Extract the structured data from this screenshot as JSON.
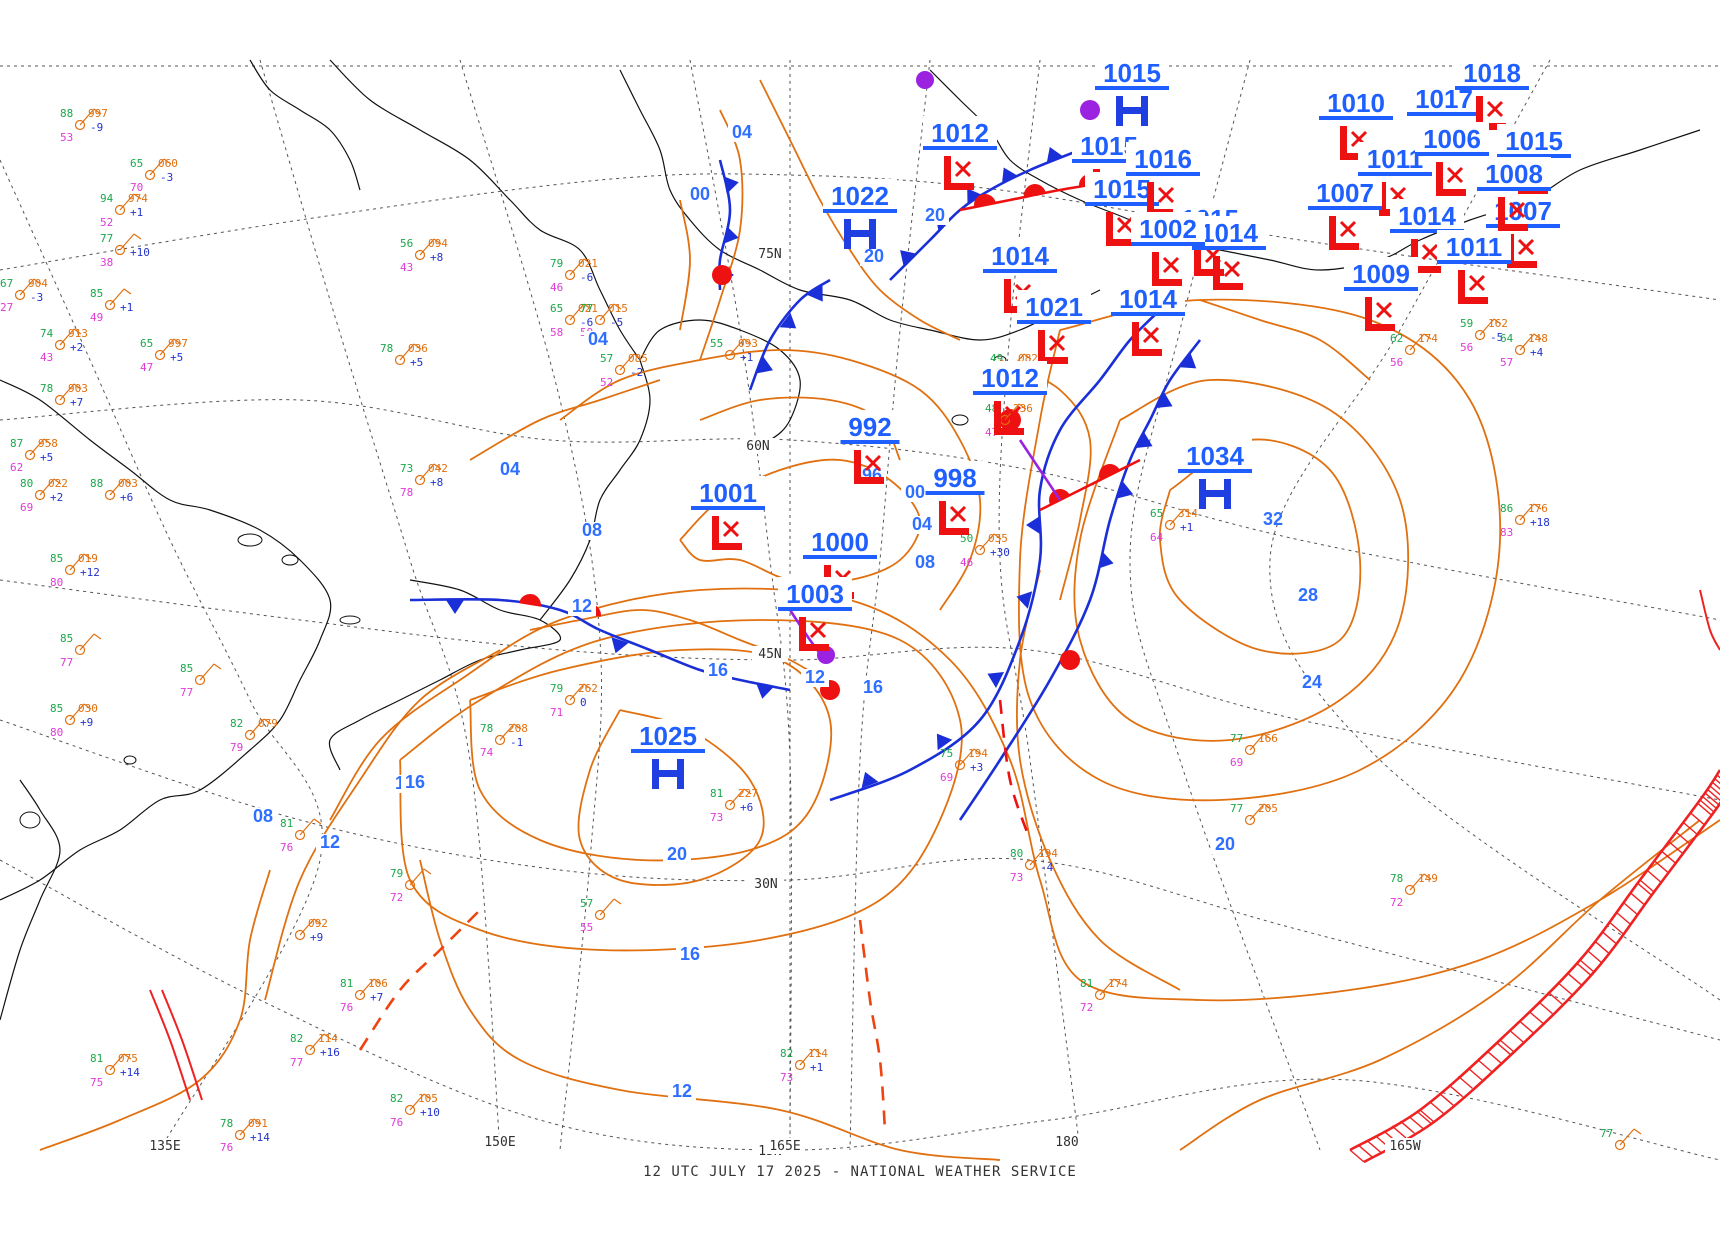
{
  "footer_text": "12 UTC JULY 17 2025 - NATIONAL WEATHER SERVICE",
  "colors": {
    "isobar": "#e07010",
    "isobar_label": "#2f6fff",
    "center_label": "#1f5fff",
    "high_symbol": "#1f3fe0",
    "low_symbol": "#ee1111",
    "cold_front": "#1a2fd8",
    "warm_front": "#ee1111",
    "occluded_front": "#9a22e0",
    "trough": "#ee4411",
    "coastline": "#111111",
    "grid": "#555555",
    "obs_temp": "#1aa84a",
    "obs_dew": "#e03ad8",
    "obs_pressure": "#e07010",
    "obs_tendency": "#2233cc"
  },
  "grid_labels": {
    "lat": [
      "75N",
      "60N",
      "45N",
      "30N",
      "15N"
    ],
    "lon": [
      "135E",
      "150E",
      "165E",
      "180",
      "165W"
    ]
  },
  "pressure_centers": [
    {
      "type": "H",
      "value": "1022"
    },
    {
      "type": "H",
      "value": "1034",
      "extra": "32"
    },
    {
      "type": "H",
      "value": "1025"
    },
    {
      "type": "H",
      "value": "1015"
    },
    {
      "type": "L",
      "value": "1012"
    },
    {
      "type": "L",
      "value": "992"
    },
    {
      "type": "L",
      "value": "998"
    },
    {
      "type": "L",
      "value": "1001"
    },
    {
      "type": "L",
      "value": "1000"
    },
    {
      "type": "L",
      "value": "1003"
    },
    {
      "type": "L",
      "value": "1014"
    },
    {
      "type": "L",
      "value": "1021"
    },
    {
      "type": "L",
      "value": "1014"
    },
    {
      "type": "L",
      "value": "1012"
    },
    {
      "type": "L",
      "value": "1015"
    },
    {
      "type": "L",
      "value": "1015"
    },
    {
      "type": "L",
      "value": "1016"
    },
    {
      "type": "L",
      "value": "1015"
    },
    {
      "type": "L",
      "value": "1014"
    },
    {
      "type": "L",
      "value": "1010"
    },
    {
      "type": "L",
      "value": "1017"
    },
    {
      "type": "L",
      "value": "1018"
    },
    {
      "type": "L",
      "value": "1011"
    },
    {
      "type": "L",
      "value": "1006"
    },
    {
      "type": "L",
      "value": "1015"
    },
    {
      "type": "L",
      "value": "1007"
    },
    {
      "type": "L",
      "value": "1014"
    },
    {
      "type": "L",
      "value": "1007"
    },
    {
      "type": "L",
      "value": "1011"
    },
    {
      "type": "L",
      "value": "1009"
    },
    {
      "type": "L",
      "value": "1002"
    },
    {
      "type": "L",
      "value": "1008"
    }
  ],
  "isobar_labels": [
    "04",
    "00",
    "20",
    "04",
    "04",
    "08",
    "12",
    "16",
    "12",
    "16",
    "04",
    "08",
    "00",
    "20",
    "96",
    "28",
    "24",
    "20",
    "20",
    "16",
    "12",
    "16",
    "12",
    "08",
    "16"
  ],
  "observations": [
    {
      "t": "88",
      "d": "53",
      "p": "997",
      "c": "-9"
    },
    {
      "t": "65",
      "d": "70",
      "p": "060",
      "c": "-3"
    },
    {
      "t": "94",
      "d": "52",
      "p": "974",
      "c": "+1"
    },
    {
      "t": "77",
      "d": "38",
      "p": "",
      "c": "+10"
    },
    {
      "t": "67",
      "d": "27",
      "p": "904",
      "c": "-3"
    },
    {
      "t": "85",
      "d": "49",
      "p": "",
      "c": "+1"
    },
    {
      "t": "74",
      "d": "43",
      "p": "913",
      "c": "+2"
    },
    {
      "t": "65",
      "d": "47",
      "p": "997",
      "c": "+5"
    },
    {
      "t": "78",
      "d": "",
      "p": "903",
      "c": "+7"
    },
    {
      "t": "87",
      "d": "62",
      "p": "958",
      "c": "+5"
    },
    {
      "t": "80",
      "d": "69",
      "p": "022",
      "c": "+2"
    },
    {
      "t": "88",
      "d": "",
      "p": "003",
      "c": "+6"
    },
    {
      "t": "85",
      "d": "80",
      "p": "019",
      "c": "+12"
    },
    {
      "t": "85",
      "d": "80",
      "p": "030",
      "c": "+9"
    },
    {
      "t": "85",
      "d": "77",
      "p": "",
      "c": ""
    },
    {
      "t": "79",
      "d": "46",
      "p": "021",
      "c": "-6"
    },
    {
      "t": "56",
      "d": "43",
      "p": "094",
      "c": "+8"
    },
    {
      "t": "78",
      "d": "",
      "p": "036",
      "c": "+5"
    },
    {
      "t": "73",
      "d": "78",
      "p": "042",
      "c": "+8"
    },
    {
      "t": "65",
      "d": "58",
      "p": "021",
      "c": "-6"
    },
    {
      "t": "77",
      "d": "59",
      "p": "015",
      "c": "-5"
    },
    {
      "t": "57",
      "d": "52",
      "p": "085",
      "c": "-2"
    },
    {
      "t": "55",
      "d": "",
      "p": "093",
      "c": "+1"
    },
    {
      "t": "49",
      "d": "47",
      "p": "082",
      "c": ""
    },
    {
      "t": "48",
      "d": "47",
      "p": "236",
      "c": ""
    },
    {
      "t": "50",
      "d": "46",
      "p": "035",
      "c": "+30"
    },
    {
      "t": "65",
      "d": "64",
      "p": "314",
      "c": "+1"
    },
    {
      "t": "86",
      "d": "83",
      "p": "176",
      "c": "+18"
    },
    {
      "t": "59",
      "d": "56",
      "p": "162",
      "c": "-5"
    },
    {
      "t": "64",
      "d": "57",
      "p": "148",
      "c": "+4"
    },
    {
      "t": "62",
      "d": "56",
      "p": "174",
      "c": ""
    },
    {
      "t": "77",
      "d": "",
      "p": "205",
      "c": ""
    },
    {
      "t": "77",
      "d": "69",
      "p": "166",
      "c": ""
    },
    {
      "t": "78",
      "d": "72",
      "p": "149",
      "c": ""
    },
    {
      "t": "81",
      "d": "72",
      "p": "174",
      "c": ""
    },
    {
      "t": "80",
      "d": "73",
      "p": "194",
      "c": "-4"
    },
    {
      "t": "75",
      "d": "69",
      "p": "194",
      "c": "+3"
    },
    {
      "t": "81",
      "d": "73",
      "p": "227",
      "c": "+6"
    },
    {
      "t": "82",
      "d": "73",
      "p": "114",
      "c": "+1"
    },
    {
      "t": "82",
      "d": "77",
      "p": "114",
      "c": "+16"
    },
    {
      "t": "82",
      "d": "76",
      "p": "105",
      "c": "+10"
    },
    {
      "t": "81",
      "d": "76",
      "p": "106",
      "c": "+7"
    },
    {
      "t": "78",
      "d": "76",
      "p": "091",
      "c": "+14"
    },
    {
      "t": "81",
      "d": "75",
      "p": "075",
      "c": "+14"
    },
    {
      "t": "",
      "d": "",
      "p": "092",
      "c": "+9"
    },
    {
      "t": "79",
      "d": "72",
      "p": "",
      "c": ""
    },
    {
      "t": "57",
      "d": "55",
      "p": "",
      "c": ""
    },
    {
      "t": "78",
      "d": "74",
      "p": "208",
      "c": "-1"
    },
    {
      "t": "79",
      "d": "71",
      "p": "262",
      "c": "0"
    },
    {
      "t": "81",
      "d": "76",
      "p": "",
      "c": ""
    },
    {
      "t": "82",
      "d": "79",
      "p": "079",
      "c": ""
    },
    {
      "t": "85",
      "d": "77",
      "p": "",
      "c": ""
    },
    {
      "t": "77",
      "d": "",
      "p": "",
      "c": ""
    }
  ]
}
